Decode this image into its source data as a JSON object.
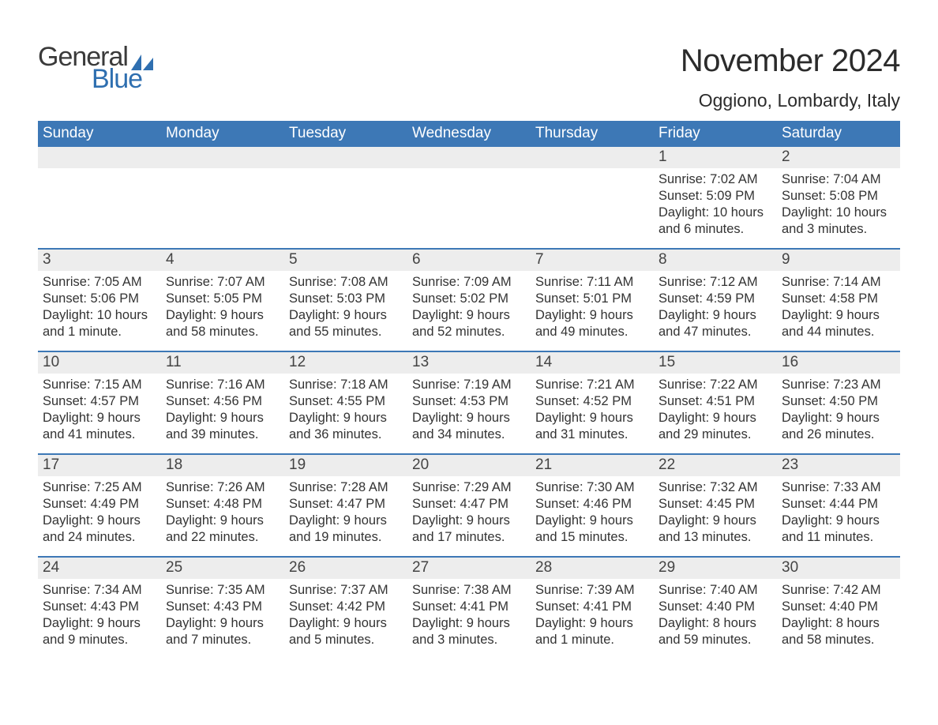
{
  "logo": {
    "text_general": "General",
    "text_blue": "Blue",
    "sail_color": "#2f6fb0",
    "general_color": "#3a3a3a",
    "blue_color": "#2f6fb0"
  },
  "header": {
    "month_title": "November 2024",
    "location": "Oggiono, Lombardy, Italy"
  },
  "style": {
    "header_row_bg": "#3d78b6",
    "header_row_fg": "#ffffff",
    "week_divider_color": "#3d78b6",
    "daynum_bar_bg": "#ededed",
    "page_bg": "#ffffff",
    "body_text_color": "#333333",
    "title_fontsize_pt": 30,
    "location_fontsize_pt": 17,
    "daynum_fontsize_pt": 14,
    "body_fontsize_pt": 12
  },
  "day_headers": [
    "Sunday",
    "Monday",
    "Tuesday",
    "Wednesday",
    "Thursday",
    "Friday",
    "Saturday"
  ],
  "weeks": [
    [
      {
        "empty": true
      },
      {
        "empty": true
      },
      {
        "empty": true
      },
      {
        "empty": true
      },
      {
        "empty": true
      },
      {
        "num": "1",
        "sunrise": "Sunrise: 7:02 AM",
        "sunset": "Sunset: 5:09 PM",
        "daylight": "Daylight: 10 hours and 6 minutes."
      },
      {
        "num": "2",
        "sunrise": "Sunrise: 7:04 AM",
        "sunset": "Sunset: 5:08 PM",
        "daylight": "Daylight: 10 hours and 3 minutes."
      }
    ],
    [
      {
        "num": "3",
        "sunrise": "Sunrise: 7:05 AM",
        "sunset": "Sunset: 5:06 PM",
        "daylight": "Daylight: 10 hours and 1 minute."
      },
      {
        "num": "4",
        "sunrise": "Sunrise: 7:07 AM",
        "sunset": "Sunset: 5:05 PM",
        "daylight": "Daylight: 9 hours and 58 minutes."
      },
      {
        "num": "5",
        "sunrise": "Sunrise: 7:08 AM",
        "sunset": "Sunset: 5:03 PM",
        "daylight": "Daylight: 9 hours and 55 minutes."
      },
      {
        "num": "6",
        "sunrise": "Sunrise: 7:09 AM",
        "sunset": "Sunset: 5:02 PM",
        "daylight": "Daylight: 9 hours and 52 minutes."
      },
      {
        "num": "7",
        "sunrise": "Sunrise: 7:11 AM",
        "sunset": "Sunset: 5:01 PM",
        "daylight": "Daylight: 9 hours and 49 minutes."
      },
      {
        "num": "8",
        "sunrise": "Sunrise: 7:12 AM",
        "sunset": "Sunset: 4:59 PM",
        "daylight": "Daylight: 9 hours and 47 minutes."
      },
      {
        "num": "9",
        "sunrise": "Sunrise: 7:14 AM",
        "sunset": "Sunset: 4:58 PM",
        "daylight": "Daylight: 9 hours and 44 minutes."
      }
    ],
    [
      {
        "num": "10",
        "sunrise": "Sunrise: 7:15 AM",
        "sunset": "Sunset: 4:57 PM",
        "daylight": "Daylight: 9 hours and 41 minutes."
      },
      {
        "num": "11",
        "sunrise": "Sunrise: 7:16 AM",
        "sunset": "Sunset: 4:56 PM",
        "daylight": "Daylight: 9 hours and 39 minutes."
      },
      {
        "num": "12",
        "sunrise": "Sunrise: 7:18 AM",
        "sunset": "Sunset: 4:55 PM",
        "daylight": "Daylight: 9 hours and 36 minutes."
      },
      {
        "num": "13",
        "sunrise": "Sunrise: 7:19 AM",
        "sunset": "Sunset: 4:53 PM",
        "daylight": "Daylight: 9 hours and 34 minutes."
      },
      {
        "num": "14",
        "sunrise": "Sunrise: 7:21 AM",
        "sunset": "Sunset: 4:52 PM",
        "daylight": "Daylight: 9 hours and 31 minutes."
      },
      {
        "num": "15",
        "sunrise": "Sunrise: 7:22 AM",
        "sunset": "Sunset: 4:51 PM",
        "daylight": "Daylight: 9 hours and 29 minutes."
      },
      {
        "num": "16",
        "sunrise": "Sunrise: 7:23 AM",
        "sunset": "Sunset: 4:50 PM",
        "daylight": "Daylight: 9 hours and 26 minutes."
      }
    ],
    [
      {
        "num": "17",
        "sunrise": "Sunrise: 7:25 AM",
        "sunset": "Sunset: 4:49 PM",
        "daylight": "Daylight: 9 hours and 24 minutes."
      },
      {
        "num": "18",
        "sunrise": "Sunrise: 7:26 AM",
        "sunset": "Sunset: 4:48 PM",
        "daylight": "Daylight: 9 hours and 22 minutes."
      },
      {
        "num": "19",
        "sunrise": "Sunrise: 7:28 AM",
        "sunset": "Sunset: 4:47 PM",
        "daylight": "Daylight: 9 hours and 19 minutes."
      },
      {
        "num": "20",
        "sunrise": "Sunrise: 7:29 AM",
        "sunset": "Sunset: 4:47 PM",
        "daylight": "Daylight: 9 hours and 17 minutes."
      },
      {
        "num": "21",
        "sunrise": "Sunrise: 7:30 AM",
        "sunset": "Sunset: 4:46 PM",
        "daylight": "Daylight: 9 hours and 15 minutes."
      },
      {
        "num": "22",
        "sunrise": "Sunrise: 7:32 AM",
        "sunset": "Sunset: 4:45 PM",
        "daylight": "Daylight: 9 hours and 13 minutes."
      },
      {
        "num": "23",
        "sunrise": "Sunrise: 7:33 AM",
        "sunset": "Sunset: 4:44 PM",
        "daylight": "Daylight: 9 hours and 11 minutes."
      }
    ],
    [
      {
        "num": "24",
        "sunrise": "Sunrise: 7:34 AM",
        "sunset": "Sunset: 4:43 PM",
        "daylight": "Daylight: 9 hours and 9 minutes."
      },
      {
        "num": "25",
        "sunrise": "Sunrise: 7:35 AM",
        "sunset": "Sunset: 4:43 PM",
        "daylight": "Daylight: 9 hours and 7 minutes."
      },
      {
        "num": "26",
        "sunrise": "Sunrise: 7:37 AM",
        "sunset": "Sunset: 4:42 PM",
        "daylight": "Daylight: 9 hours and 5 minutes."
      },
      {
        "num": "27",
        "sunrise": "Sunrise: 7:38 AM",
        "sunset": "Sunset: 4:41 PM",
        "daylight": "Daylight: 9 hours and 3 minutes."
      },
      {
        "num": "28",
        "sunrise": "Sunrise: 7:39 AM",
        "sunset": "Sunset: 4:41 PM",
        "daylight": "Daylight: 9 hours and 1 minute."
      },
      {
        "num": "29",
        "sunrise": "Sunrise: 7:40 AM",
        "sunset": "Sunset: 4:40 PM",
        "daylight": "Daylight: 8 hours and 59 minutes."
      },
      {
        "num": "30",
        "sunrise": "Sunrise: 7:42 AM",
        "sunset": "Sunset: 4:40 PM",
        "daylight": "Daylight: 8 hours and 58 minutes."
      }
    ]
  ]
}
